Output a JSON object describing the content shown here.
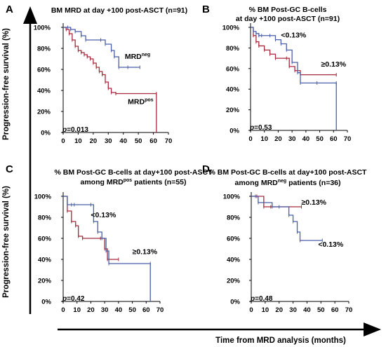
{
  "y_axis_title": "Progression-free survival (%)",
  "x_axis_title": "Time from MRD analysis (months)",
  "colors": {
    "blue": "#4a5fa8",
    "red": "#a52a3c"
  },
  "chart_data": [
    {
      "panel": "A",
      "type": "line",
      "title_lines": [
        {
          "text": "BM MRD at day +100 post-ASCT (n=91)",
          "sup": "",
          "after": ""
        }
      ],
      "xticks": [
        0,
        10,
        20,
        30,
        40,
        50,
        60,
        70
      ],
      "yticks": [
        "0%",
        "20%",
        "40%",
        "60%",
        "80%",
        "100%"
      ],
      "xlim": [
        0,
        70
      ],
      "ylim": [
        0,
        100
      ],
      "pvalue": {
        "italic": "p",
        "rest": "=0.013"
      },
      "annotations": [
        {
          "text": "MRD",
          "sup": "neg",
          "x": 41,
          "y": 70
        },
        {
          "text": "MRD",
          "sup": "pos",
          "x": 43,
          "y": 27
        }
      ],
      "series": [
        {
          "name": "MRDneg",
          "color": "blue",
          "x": [
            0,
            3,
            5,
            8,
            12,
            15,
            25,
            28,
            32,
            34,
            37,
            43,
            51
          ],
          "y": [
            100,
            100,
            98,
            96,
            92,
            88,
            88,
            84,
            78,
            72,
            62,
            62,
            62
          ]
        },
        {
          "name": "MRDpos",
          "color": "red",
          "x": [
            0,
            2,
            4,
            6,
            8,
            10,
            12,
            14,
            16,
            18,
            20,
            22,
            24,
            26,
            28,
            30,
            32,
            35,
            62,
            62
          ],
          "y": [
            100,
            98,
            94,
            88,
            82,
            78,
            76,
            74,
            72,
            70,
            66,
            62,
            58,
            55,
            48,
            42,
            38,
            37,
            37,
            0
          ]
        }
      ]
    },
    {
      "panel": "B",
      "type": "line",
      "title_lines": [
        {
          "text": "% BM Post-GC B-cells",
          "sup": "",
          "after": ""
        },
        {
          "text": "at  day +100 post-ASCT (n=91)",
          "sup": "",
          "after": ""
        }
      ],
      "xticks": [
        0,
        10,
        20,
        30,
        40,
        50,
        60,
        70
      ],
      "yticks": [
        "0%",
        "20%",
        "40%",
        "60%",
        "80%",
        "100%"
      ],
      "xlim": [
        0,
        70
      ],
      "ylim": [
        0,
        100
      ],
      "pvalue": {
        "italic": "p",
        "rest": "=0.53"
      },
      "annotations": [
        {
          "text": "<0.13%",
          "sup": "",
          "x": 22,
          "y": 90
        },
        {
          "text": "≥0.13%",
          "sup": "",
          "x": 51,
          "y": 62
        }
      ],
      "series": [
        {
          "name": "<0.13%",
          "color": "blue",
          "x": [
            0,
            2,
            4,
            6,
            8,
            14,
            18,
            22,
            26,
            30,
            34,
            36,
            48,
            62,
            62
          ],
          "y": [
            100,
            96,
            94,
            92,
            92,
            92,
            88,
            84,
            78,
            66,
            56,
            46,
            46,
            46,
            0
          ]
        },
        {
          "name": "≥0.13%",
          "color": "red",
          "x": [
            0,
            2,
            4,
            6,
            10,
            14,
            18,
            26,
            28,
            32,
            36,
            62
          ],
          "y": [
            100,
            92,
            86,
            82,
            78,
            74,
            70,
            70,
            62,
            58,
            54,
            54
          ]
        }
      ]
    },
    {
      "panel": "C",
      "type": "line",
      "title_lines": [
        {
          "text": "% BM Post-GC B-cells at day+100 post-ASCT",
          "sup": "",
          "after": ""
        },
        {
          "text": "among MRD",
          "sup": "pos",
          "after": " patients (n=55)"
        }
      ],
      "xticks": [
        0,
        10,
        20,
        30,
        40,
        50,
        60,
        70
      ],
      "yticks": [
        "0%",
        "20%",
        "40%",
        "60%",
        "80%",
        "100%"
      ],
      "xlim": [
        0,
        70
      ],
      "ylim": [
        0,
        100
      ],
      "pvalue": {
        "italic": "p",
        "rest": "=0.42"
      },
      "annotations": [
        {
          "text": "<0.13%",
          "sup": "",
          "x": 20,
          "y": 80
        },
        {
          "text": "≥0.13%",
          "sup": "",
          "x": 50,
          "y": 45
        }
      ],
      "series": [
        {
          "name": "<0.13%",
          "color": "blue",
          "x": [
            0,
            3,
            6,
            8,
            20,
            22,
            25,
            28,
            31,
            33,
            63,
            63
          ],
          "y": [
            100,
            92,
            92,
            92,
            92,
            76,
            66,
            60,
            48,
            36,
            36,
            0
          ]
        },
        {
          "name": "≥0.13%",
          "color": "red",
          "x": [
            0,
            3,
            6,
            9,
            11,
            14,
            27,
            30,
            32,
            40
          ],
          "y": [
            100,
            86,
            76,
            72,
            62,
            60,
            60,
            50,
            40,
            40
          ]
        }
      ]
    },
    {
      "panel": "D",
      "type": "line",
      "title_lines": [
        {
          "text": "% BM Post-GC B-cells at day+100 post-ASCT",
          "sup": "",
          "after": ""
        },
        {
          "text": "among MRD",
          "sup": "neg",
          "after": " patients (n=36)"
        }
      ],
      "xticks": [
        0,
        10,
        20,
        30,
        40,
        50,
        60,
        70
      ],
      "yticks": [
        "0%",
        "20%",
        "40%",
        "60%",
        "80%",
        "100%"
      ],
      "xlim": [
        0,
        70
      ],
      "ylim": [
        0,
        100
      ],
      "pvalue": {
        "italic": "p",
        "rest": "=0.48"
      },
      "annotations": [
        {
          "text": "≥0.13%",
          "sup": "",
          "x": 36,
          "y": 92
        },
        {
          "text": "<0.13%",
          "sup": "",
          "x": 48,
          "y": 52
        }
      ],
      "series": [
        {
          "name": "<0.13%",
          "color": "blue",
          "x": [
            0,
            3,
            5,
            15,
            20,
            27,
            30,
            33,
            35,
            51
          ],
          "y": [
            100,
            100,
            94,
            90,
            90,
            82,
            76,
            66,
            58,
            58
          ]
        },
        {
          "name": "≥0.13%",
          "color": "red",
          "x": [
            0,
            4,
            9,
            14,
            36
          ],
          "y": [
            100,
            100,
            90,
            90,
            90
          ]
        }
      ]
    }
  ]
}
